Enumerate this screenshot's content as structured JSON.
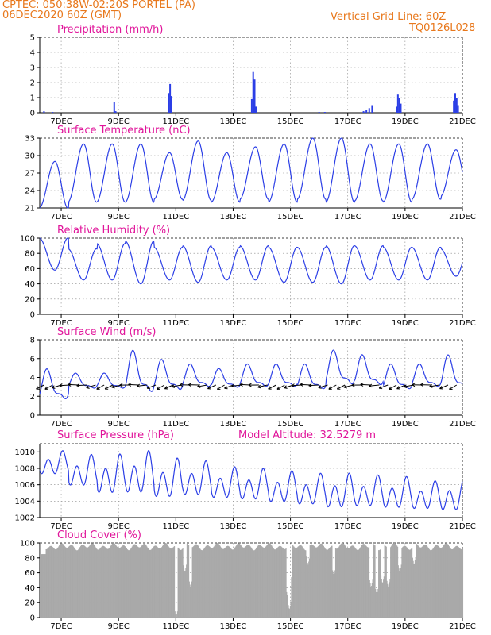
{
  "header": {
    "line1_left": "CPTEC:   050:38W-02:20S   PORTEL (PA)",
    "line2_left": "06DEC2020 60Z (GMT)",
    "line1_right": "Vertical Grid Line: 60Z",
    "line2_right": "TQ0126L028"
  },
  "colors": {
    "header": "#e8781c",
    "title": "#e0159a",
    "line": "#2b3ee6",
    "bar": "#2b3ee6",
    "cloud": "#a9a9a9"
  },
  "x_ticks": [
    "7DEC",
    "9DEC",
    "11DEC",
    "13DEC",
    "15DEC",
    "17DEC",
    "19DEC",
    "21DEC"
  ],
  "chart_data": [
    {
      "type": "bar",
      "title": "Precipitation (mm/h)",
      "ylim": [
        0,
        5
      ],
      "yticks": [
        0,
        1,
        2,
        3,
        4,
        5
      ],
      "x_range_days": [
        6.25,
        21.0
      ],
      "events": [
        {
          "day": 6.4,
          "value": 0.1
        },
        {
          "day": 6.7,
          "value": 0.05
        },
        {
          "day": 8.85,
          "value": 0.7
        },
        {
          "day": 8.9,
          "value": 0.1
        },
        {
          "day": 10.75,
          "value": 1.3
        },
        {
          "day": 10.8,
          "value": 1.9
        },
        {
          "day": 10.85,
          "value": 1.1
        },
        {
          "day": 13.65,
          "value": 0.9
        },
        {
          "day": 13.7,
          "value": 2.7
        },
        {
          "day": 13.75,
          "value": 2.2
        },
        {
          "day": 13.8,
          "value": 0.4
        },
        {
          "day": 16.0,
          "value": 0.05
        },
        {
          "day": 16.2,
          "value": 0.05
        },
        {
          "day": 17.55,
          "value": 0.1
        },
        {
          "day": 17.65,
          "value": 0.2
        },
        {
          "day": 17.75,
          "value": 0.3
        },
        {
          "day": 17.85,
          "value": 0.5
        },
        {
          "day": 18.7,
          "value": 0.4
        },
        {
          "day": 18.75,
          "value": 1.2
        },
        {
          "day": 18.8,
          "value": 1.0
        },
        {
          "day": 18.85,
          "value": 0.6
        },
        {
          "day": 20.7,
          "value": 0.8
        },
        {
          "day": 20.75,
          "value": 1.3
        },
        {
          "day": 20.8,
          "value": 1.0
        },
        {
          "day": 20.85,
          "value": 0.5
        }
      ]
    },
    {
      "type": "line",
      "title": "Surface Temperature (nC)",
      "ylim": [
        21,
        33
      ],
      "yticks": [
        21,
        24,
        27,
        30,
        33
      ],
      "daily_min": [
        21.0,
        22.0,
        22.0,
        22.0,
        22.5,
        22.3,
        22.0,
        22.5,
        22.0,
        22.5,
        22.0,
        22.2,
        22.0,
        22.5,
        23.0
      ],
      "daily_max": [
        29.0,
        32.0,
        32.0,
        32.0,
        30.5,
        32.5,
        30.5,
        31.5,
        32.0,
        33.0,
        33.0,
        32.0,
        32.0,
        32.0,
        31.0
      ]
    },
    {
      "type": "line",
      "title": "Relative Humidity (%)",
      "ylim": [
        0,
        100
      ],
      "yticks": [
        0,
        20,
        40,
        60,
        80,
        100
      ],
      "daily_min": [
        58,
        45,
        45,
        40,
        45,
        42,
        45,
        45,
        42,
        42,
        40,
        45,
        45,
        45,
        50
      ],
      "daily_max": [
        100,
        86,
        93,
        96,
        88,
        90,
        88,
        90,
        88,
        88,
        90,
        90,
        88,
        88,
        86
      ]
    },
    {
      "type": "line",
      "title": "Surface Wind (m/s)",
      "ylim": [
        0,
        8
      ],
      "yticks": [
        0,
        2,
        4,
        6,
        8
      ],
      "daily_min": [
        1.0,
        2.5,
        2.5,
        1.5,
        2.0,
        2.5,
        2.5,
        2.5,
        2.5,
        2.2,
        2.5,
        2.5,
        2.2,
        2.5,
        2.0
      ],
      "daily_max": [
        5.0,
        4.5,
        4.5,
        7.0,
        6.0,
        5.5,
        5.0,
        5.5,
        5.5,
        5.5,
        7.0,
        6.5,
        5.5,
        5.5,
        6.5
      ]
    },
    {
      "type": "line",
      "title": "Surface Pressure (hPa)",
      "subtitle": "Model Altitude: 32.5279 m",
      "ylim": [
        1002,
        1011
      ],
      "yticks": [
        1002,
        1004,
        1006,
        1008,
        1010
      ],
      "daily_mean": [
        1008.5,
        1007.5,
        1007.0,
        1007.2,
        1006.5,
        1006.5,
        1006.0,
        1005.8,
        1005.5,
        1005.2,
        1005.0,
        1005.0,
        1004.8,
        1004.5,
        1004.5
      ],
      "amplitude": [
        1.5,
        2.0,
        2.5,
        2.7,
        2.5,
        2.2,
        2.0,
        2.0,
        2.0,
        2.0,
        2.2,
        2.0,
        2.0,
        1.8,
        2.0
      ]
    },
    {
      "type": "area",
      "title": "Cloud Cover (%)",
      "ylim": [
        0,
        100
      ],
      "yticks": [
        0,
        20,
        40,
        60,
        80,
        100
      ],
      "typical_value": 95,
      "dips": [
        {
          "day": 11.0,
          "value": 0
        },
        {
          "day": 11.3,
          "value": 60
        },
        {
          "day": 11.5,
          "value": 40
        },
        {
          "day": 14.9,
          "value": 25
        },
        {
          "day": 14.95,
          "value": 10
        },
        {
          "day": 15.0,
          "value": 50
        },
        {
          "day": 15.6,
          "value": 70
        },
        {
          "day": 16.5,
          "value": 55
        },
        {
          "day": 17.8,
          "value": 40
        },
        {
          "day": 18.0,
          "value": 30
        },
        {
          "day": 18.2,
          "value": 45
        },
        {
          "day": 18.4,
          "value": 40
        },
        {
          "day": 18.8,
          "value": 60
        },
        {
          "day": 19.3,
          "value": 70
        }
      ]
    }
  ]
}
